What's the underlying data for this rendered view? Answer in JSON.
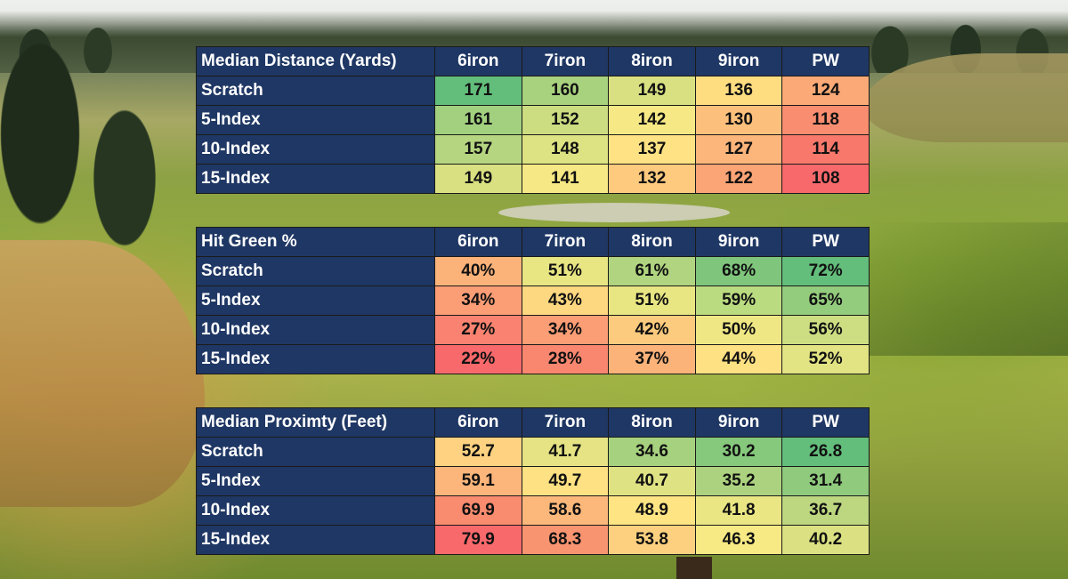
{
  "chart_data": [
    {
      "type": "table",
      "title": "Median Distance (Yards)",
      "columns": [
        "6iron",
        "7iron",
        "8iron",
        "9iron",
        "PW"
      ],
      "rows": [
        {
          "label": "Scratch",
          "values": [
            "171",
            "160",
            "149",
            "136",
            "124"
          ],
          "colors": [
            "#63be7b",
            "#a9d27f",
            "#d9e081",
            "#fedd81",
            "#fbaa77"
          ]
        },
        {
          "label": "5-Index",
          "values": [
            "161",
            "152",
            "142",
            "130",
            "118"
          ],
          "colors": [
            "#a2d07f",
            "#cbdc81",
            "#f6e884",
            "#fdc07c",
            "#f98d6f"
          ]
        },
        {
          "label": "10-Index",
          "values": [
            "157",
            "148",
            "137",
            "127",
            "114"
          ],
          "colors": [
            "#b5d580",
            "#dde282",
            "#ffe283",
            "#fcb57a",
            "#f8796b"
          ]
        },
        {
          "label": "15-Index",
          "values": [
            "149",
            "141",
            "132",
            "122",
            "108"
          ],
          "colors": [
            "#d9e081",
            "#f6e884",
            "#fdca7e",
            "#fba476",
            "#f8696b"
          ]
        }
      ]
    },
    {
      "type": "table",
      "title": "Hit Green %",
      "columns": [
        "6iron",
        "7iron",
        "8iron",
        "9iron",
        "PW"
      ],
      "rows": [
        {
          "label": "Scratch",
          "values": [
            "40%",
            "51%",
            "61%",
            "68%",
            "72%"
          ],
          "colors": [
            "#fcb37a",
            "#e8e583",
            "#b0d47f",
            "#7fc67c",
            "#63be7b"
          ]
        },
        {
          "label": "5-Index",
          "values": [
            "34%",
            "43%",
            "51%",
            "59%",
            "65%"
          ],
          "colors": [
            "#fb9d75",
            "#fed880",
            "#e8e583",
            "#badb80",
            "#94cc7d"
          ]
        },
        {
          "label": "10-Index",
          "values": [
            "27%",
            "34%",
            "42%",
            "50%",
            "56%"
          ],
          "colors": [
            "#f98370",
            "#fb9d75",
            "#fdcb7e",
            "#efe784",
            "#ccdd82"
          ]
        },
        {
          "label": "15-Index",
          "values": [
            "22%",
            "28%",
            "37%",
            "44%",
            "52%"
          ],
          "colors": [
            "#f8696b",
            "#f9876f",
            "#fcb37a",
            "#fee182",
            "#e2e383"
          ]
        }
      ]
    },
    {
      "type": "table",
      "title": "Median Proximty (Feet)",
      "columns": [
        "6iron",
        "7iron",
        "8iron",
        "9iron",
        "PW"
      ],
      "rows": [
        {
          "label": "Scratch",
          "values": [
            "52.7",
            "41.7",
            "34.6",
            "30.2",
            "26.8"
          ],
          "colors": [
            "#fed280",
            "#e5e383",
            "#a6d17e",
            "#86c87c",
            "#63be7b"
          ]
        },
        {
          "label": "5-Index",
          "values": [
            "59.1",
            "49.7",
            "40.7",
            "35.2",
            "31.4"
          ],
          "colors": [
            "#fcb57a",
            "#fee182",
            "#dfe283",
            "#acd27f",
            "#8fca7d"
          ]
        },
        {
          "label": "10-Index",
          "values": [
            "69.9",
            "58.6",
            "48.9",
            "41.8",
            "36.7"
          ],
          "colors": [
            "#f98b6f",
            "#fcb87b",
            "#fee483",
            "#eae684",
            "#bcd780"
          ]
        },
        {
          "label": "15-Index",
          "values": [
            "79.9",
            "68.3",
            "53.8",
            "46.3",
            "40.2"
          ],
          "colors": [
            "#f8696b",
            "#f99470",
            "#fdd07f",
            "#f7e984",
            "#dbe182"
          ]
        }
      ]
    }
  ]
}
